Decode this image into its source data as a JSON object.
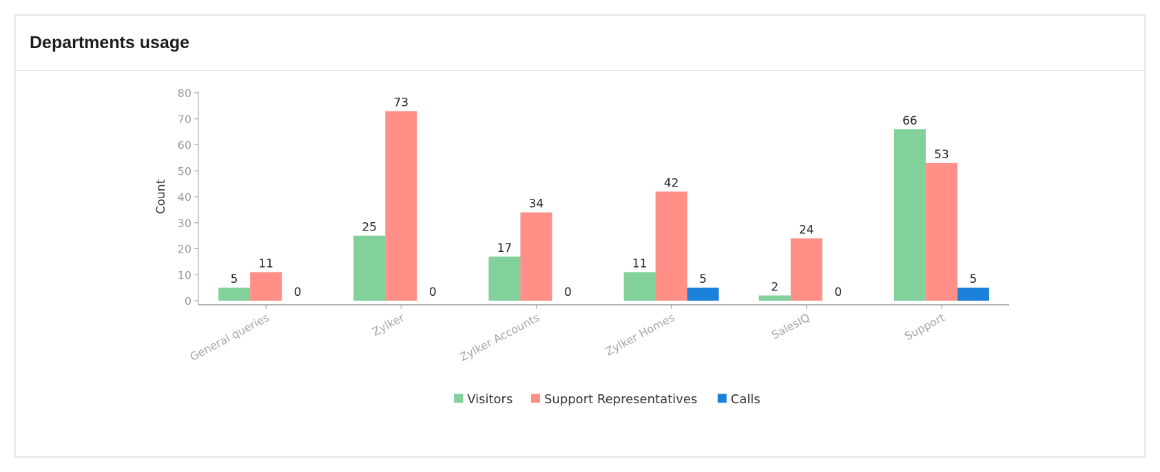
{
  "card": {
    "title": "Departments usage"
  },
  "chart_data": {
    "type": "bar",
    "categories": [
      "General queries",
      "Zylker",
      "Zylker Accounts",
      "Zylker Homes",
      "SalesIQ",
      "Support"
    ],
    "series": [
      {
        "name": "Visitors",
        "color": "#82d19a",
        "values": [
          5,
          25,
          17,
          11,
          2,
          66
        ]
      },
      {
        "name": "Support Representatives",
        "color": "#ff8f87",
        "values": [
          11,
          73,
          34,
          42,
          24,
          53
        ]
      },
      {
        "name": "Calls",
        "color": "#1a80d9",
        "values": [
          0,
          0,
          0,
          5,
          0,
          5
        ]
      }
    ],
    "ylabel": "Count",
    "xlabel": "",
    "ylim": [
      0,
      80
    ],
    "yticks": [
      0,
      10,
      20,
      30,
      40,
      50,
      60,
      70,
      80
    ],
    "grid": false,
    "legend_position": "bottom-center",
    "data_labels": true
  }
}
